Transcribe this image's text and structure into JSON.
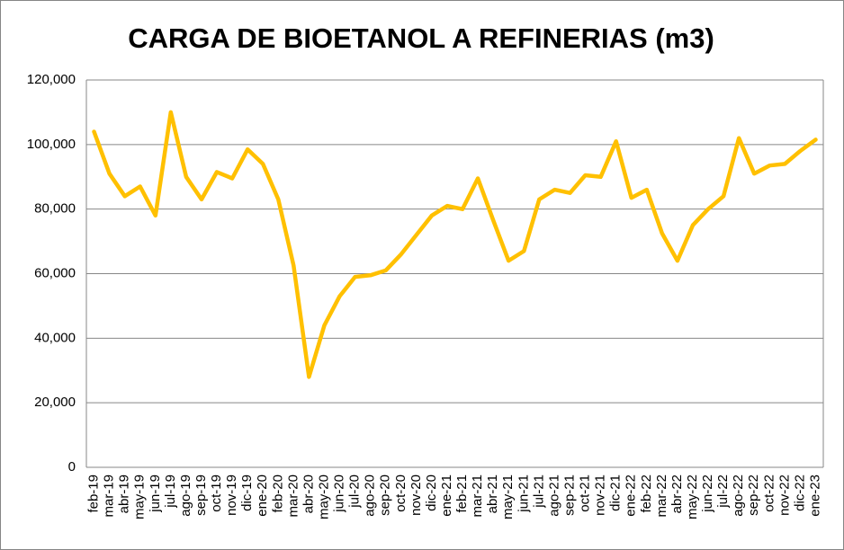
{
  "chart_data": {
    "type": "line",
    "title": "CARGA DE BIOETANOL A REFINERIAS (m3)",
    "categories": [
      "feb-19",
      "mar-19",
      "abr-19",
      "may-19",
      "jun-19",
      "jul-19",
      "ago-19",
      "sep-19",
      "oct-19",
      "nov-19",
      "dic-19",
      "ene-20",
      "feb-20",
      "mar-20",
      "abr-20",
      "may-20",
      "jun-20",
      "jul-20",
      "ago-20",
      "sep-20",
      "oct-20",
      "nov-20",
      "dic-20",
      "ene-21",
      "feb-21",
      "mar-21",
      "abr-21",
      "may-21",
      "jun-21",
      "jul-21",
      "ago-21",
      "sep-21",
      "oct-21",
      "nov-21",
      "dic-21",
      "ene-22",
      "feb-22",
      "mar-22",
      "abr-22",
      "may-22",
      "jun-22",
      "jul-22",
      "ago-22",
      "sep-22",
      "oct-22",
      "nov-22",
      "dic-22",
      "ene-23"
    ],
    "values": [
      104000,
      91000,
      84000,
      87000,
      78000,
      110000,
      90000,
      83000,
      91500,
      89500,
      98500,
      94000,
      83000,
      62500,
      28000,
      44000,
      53000,
      59000,
      59500,
      61000,
      66000,
      72000,
      78000,
      81000,
      80000,
      89500,
      76500,
      64000,
      67000,
      83000,
      86000,
      85000,
      90500,
      90000,
      101000,
      83500,
      86000,
      72500,
      64000,
      75000,
      80000,
      84000,
      102000,
      91000,
      93500,
      94000,
      98000,
      101500
    ],
    "color": "#ffc000",
    "ylim": [
      0,
      120000
    ],
    "yticks": [
      0,
      {
        "value": 20000,
        "label": "20,000"
      },
      {
        "value": 40000,
        "label": "40,000"
      },
      {
        "value": 60000,
        "label": "60,000"
      },
      {
        "value": 80000,
        "label": "80,000"
      },
      {
        "value": 100000,
        "label": "100,000"
      },
      {
        "value": 120000,
        "label": "120,000"
      }
    ],
    "grid": true
  }
}
